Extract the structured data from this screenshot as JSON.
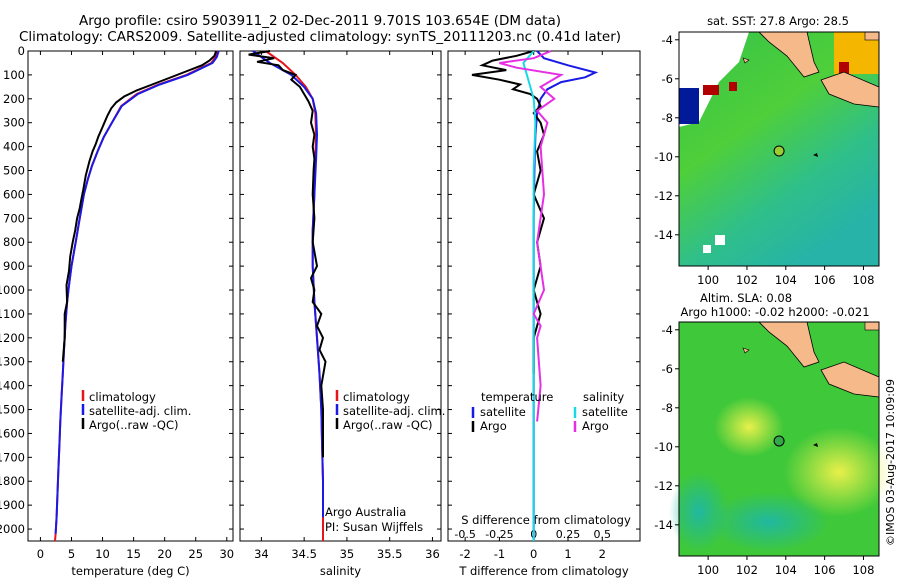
{
  "header": {
    "line1": "Argo profile: csiro 5903911_2 02-Dec-2011 9.701S 103.654E (DM data)",
    "line2": "Climatology: CARS2009. Satellite-adjusted climatology: synTS_20111203.nc (0.41d later)"
  },
  "credit": "©IMOS 03-Aug-2017 10:09:09",
  "colors": {
    "climatology": "#e8141c",
    "satellite": "#1a1ae6",
    "argo": "#000000",
    "sal_sat": "#17d9e6",
    "sal_argo": "#e62ee6",
    "land": "#f5b98a"
  },
  "chart_data": [
    {
      "type": "line",
      "xlabel": "temperature (deg C)",
      "ylabel": "",
      "xlim": [
        -2,
        31
      ],
      "ylim": [
        2050,
        0
      ],
      "xticks": [
        "0",
        "5",
        "10",
        "15",
        "20",
        "25",
        "30"
      ],
      "yticks": [
        "0",
        "100",
        "200",
        "300",
        "400",
        "500",
        "600",
        "700",
        "800",
        "900",
        "1000",
        "1100",
        "1200",
        "1300",
        "1400",
        "1500",
        "1600",
        "1700",
        "1800",
        "1900",
        "2000"
      ],
      "legend": {
        "position": "lower-right",
        "entries": [
          "climatology",
          "satellite-adj. clim.",
          "Argo(..raw -QC)"
        ]
      },
      "series": [
        {
          "name": "climatology",
          "color": "#e8141c",
          "x": [
            28.5,
            28.2,
            27.5,
            23.5,
            19,
            15.5,
            13,
            11.5,
            10.2,
            9.2,
            8.3,
            7.6,
            7,
            6.6,
            6.2,
            5.8,
            5.4,
            5,
            4.6,
            4.3,
            4,
            3.8,
            3.6,
            3.4,
            3.2,
            3.05,
            2.9,
            2.75,
            2.6,
            2.45,
            2.35
          ],
          "y": [
            0,
            25,
            50,
            100,
            140,
            180,
            230,
            300,
            360,
            420,
            480,
            540,
            600,
            660,
            720,
            780,
            840,
            900,
            980,
            1050,
            1150,
            1250,
            1350,
            1450,
            1550,
            1650,
            1750,
            1850,
            1950,
            2020,
            2050
          ]
        },
        {
          "name": "satellite-adj. clim.",
          "color": "#1a1ae6",
          "x": [
            28.7,
            28.4,
            27.7,
            23.7,
            19.2,
            15.7,
            13.1,
            11.5,
            10.2,
            9.2,
            8.3,
            7.6,
            7,
            6.6,
            6.2,
            5.8,
            5.4,
            5,
            4.6,
            4.3,
            4,
            3.8,
            3.6,
            3.4,
            3.2,
            3.05,
            2.9,
            2.75,
            2.6,
            2.45
          ],
          "y": [
            0,
            25,
            50,
            100,
            140,
            180,
            230,
            300,
            360,
            420,
            480,
            540,
            600,
            660,
            720,
            780,
            840,
            900,
            980,
            1050,
            1150,
            1250,
            1350,
            1450,
            1550,
            1650,
            1750,
            1850,
            1950,
            2020
          ]
        },
        {
          "name": "Argo(..raw -QC)",
          "color": "#000000",
          "x": [
            28.3,
            28,
            27.2,
            26,
            23,
            20.5,
            18,
            15.5,
            13.5,
            12.2,
            11.4,
            10.8,
            10.3,
            9.8,
            9.3,
            8.9,
            8.4,
            7.9,
            7.3,
            6.9,
            6.6,
            6.3,
            5.9,
            5.6,
            5.2,
            4.8,
            4.6,
            4.2,
            4.3,
            3.9,
            3.9,
            3.6
          ],
          "y": [
            0,
            20,
            40,
            60,
            90,
            115,
            140,
            165,
            190,
            215,
            240,
            270,
            300,
            330,
            360,
            390,
            420,
            460,
            520,
            580,
            620,
            660,
            700,
            750,
            800,
            860,
            920,
            980,
            1050,
            1100,
            1200,
            1300
          ]
        }
      ]
    },
    {
      "type": "line",
      "xlabel": "salinity",
      "xlim": [
        33.75,
        36.1
      ],
      "ylim": [
        2050,
        0
      ],
      "xticks": [
        "34",
        "34.5",
        "35",
        "35.5",
        "36"
      ],
      "legend": {
        "position": "lower-right",
        "entries": [
          "climatology",
          "satellite-adj. clim.",
          "Argo(..raw -QC)"
        ]
      },
      "annotation": [
        "Argo Australia",
        "PI: Susan Wijffels"
      ],
      "series": [
        {
          "name": "climatology",
          "color": "#e8141c",
          "x": [
            34.05,
            34.25,
            34.4,
            34.52,
            34.6,
            34.63,
            34.64,
            34.63,
            34.62,
            34.6,
            34.6,
            34.62,
            34.65,
            34.68,
            34.7,
            34.71,
            34.72,
            34.72,
            34.72
          ],
          "y": [
            0,
            50,
            100,
            150,
            200,
            260,
            350,
            450,
            600,
            750,
            900,
            1050,
            1200,
            1350,
            1500,
            1650,
            1800,
            1950,
            2050
          ]
        },
        {
          "name": "satellite-adj. clim.",
          "color": "#1a1ae6",
          "x": [
            33.9,
            34.1,
            34.35,
            34.5,
            34.6,
            34.64,
            34.65,
            34.64,
            34.62,
            34.6,
            34.6,
            34.62,
            34.65,
            34.68,
            34.7,
            34.71,
            34.72,
            34.72
          ],
          "y": [
            0,
            50,
            100,
            150,
            200,
            260,
            350,
            450,
            600,
            750,
            900,
            1050,
            1200,
            1350,
            1500,
            1650,
            1800,
            1950
          ]
        },
        {
          "name": "Argo(..raw -QC)",
          "color": "#000000",
          "x": [
            34.1,
            33.85,
            34.15,
            33.95,
            34.2,
            34.25,
            34.4,
            34.35,
            34.45,
            34.5,
            34.55,
            34.6,
            34.58,
            34.62,
            34.6,
            34.62,
            34.61,
            34.6,
            34.62,
            34.6,
            34.65,
            34.58,
            34.62,
            34.6,
            34.7,
            34.65,
            34.72,
            34.68,
            34.75,
            34.7,
            34.72,
            34.72
          ],
          "y": [
            0,
            15,
            30,
            45,
            60,
            80,
            100,
            120,
            150,
            180,
            210,
            250,
            300,
            350,
            400,
            450,
            500,
            600,
            700,
            800,
            900,
            950,
            1000,
            1050,
            1100,
            1150,
            1200,
            1250,
            1300,
            1400,
            1500,
            1700
          ]
        }
      ]
    },
    {
      "type": "line",
      "xlabel": "T difference from climatology",
      "xlabel_top": "S difference from climatology",
      "xlim": [
        -2.5,
        3.1
      ],
      "ylim": [
        2050,
        0
      ],
      "xticks": [
        "-2",
        "-1",
        "0",
        "1",
        "2"
      ],
      "xticks_top": [
        "-0.5",
        "-0.25",
        "0",
        "0.25",
        "0.5"
      ],
      "legend": {
        "position": "lower",
        "entries": [
          "temperature",
          "satellite",
          "Argo",
          "salinity",
          "satellite",
          "Argo"
        ]
      },
      "series": [
        {
          "name": "satellite",
          "color": "#1a1ae6",
          "x": [
            0.1,
            0.3,
            1.0,
            1.8,
            1.5,
            0.8,
            0.4,
            0.2,
            0.1,
            0.05,
            0.02,
            0,
            0,
            0,
            0,
            0,
            0
          ],
          "y": [
            0,
            30,
            60,
            90,
            110,
            130,
            160,
            200,
            260,
            350,
            500,
            700,
            900,
            1200,
            1500,
            1800,
            2050
          ]
        },
        {
          "name": "Argo",
          "color": "#000000",
          "x": [
            0,
            -0.5,
            -1.2,
            -1.5,
            -0.8,
            -1.8,
            -1.0,
            -0.4,
            -0.6,
            -0.1,
            0.1,
            0.2,
            0,
            0.2,
            0.3,
            0.1,
            0.2,
            0,
            0.3,
            0.1,
            0.2,
            0,
            0.1,
            0.2,
            0.1,
            0,
            0
          ],
          "y": [
            0,
            20,
            40,
            60,
            80,
            100,
            120,
            140,
            160,
            180,
            200,
            230,
            260,
            300,
            350,
            420,
            500,
            600,
            700,
            800,
            900,
            1000,
            1050,
            1100,
            1150,
            1200,
            1350
          ]
        },
        {
          "name": "salinity satellite",
          "color": "#17d9e6",
          "x": [
            0.0,
            -0.3,
            -0.2,
            -0.1,
            0.0,
            0.05,
            0.0,
            0.0,
            0.0,
            0.0,
            0.0,
            0.0
          ],
          "y": [
            0,
            50,
            100,
            150,
            200,
            300,
            500,
            800,
            1100,
            1400,
            1700,
            2050
          ]
        },
        {
          "name": "salinity Argo",
          "color": "#e62ee6",
          "x": [
            0.5,
            0.0,
            -1.0,
            -0.5,
            0.8,
            0.2,
            0.6,
            0.1,
            0.4,
            0.2,
            0.3,
            0.1,
            0.3,
            0.0,
            0.2,
            0.1,
            0.2,
            0.1
          ],
          "y": [
            0,
            30,
            50,
            70,
            100,
            150,
            200,
            250,
            300,
            400,
            600,
            800,
            1000,
            1100,
            1150,
            1200,
            1400,
            1550
          ]
        }
      ]
    }
  ],
  "maps": {
    "sst": {
      "title": "sat. SST: 27.8  Argo: 28.5",
      "xticks": [
        "100",
        "102",
        "104",
        "106",
        "108"
      ],
      "yticks": [
        "-4",
        "-6",
        "-8",
        "-10",
        "-12",
        "-14"
      ],
      "lon": [
        98.5,
        108.8
      ],
      "lat": [
        -3.6,
        -15.6
      ],
      "float_lon": 103.654,
      "float_lat": -9.701
    },
    "sla": {
      "title1": "Altim. SLA: 0.08",
      "title2": "Argo h1000: -0.02  h2000: -0.021",
      "xticks": [
        "100",
        "102",
        "104",
        "106",
        "108"
      ],
      "yticks": [
        "-4",
        "-6",
        "-8",
        "-10",
        "-12",
        "-14"
      ],
      "lon": [
        98.5,
        108.8
      ],
      "lat": [
        -3.6,
        -15.6
      ],
      "float_lon": 103.654,
      "float_lat": -9.701
    }
  }
}
